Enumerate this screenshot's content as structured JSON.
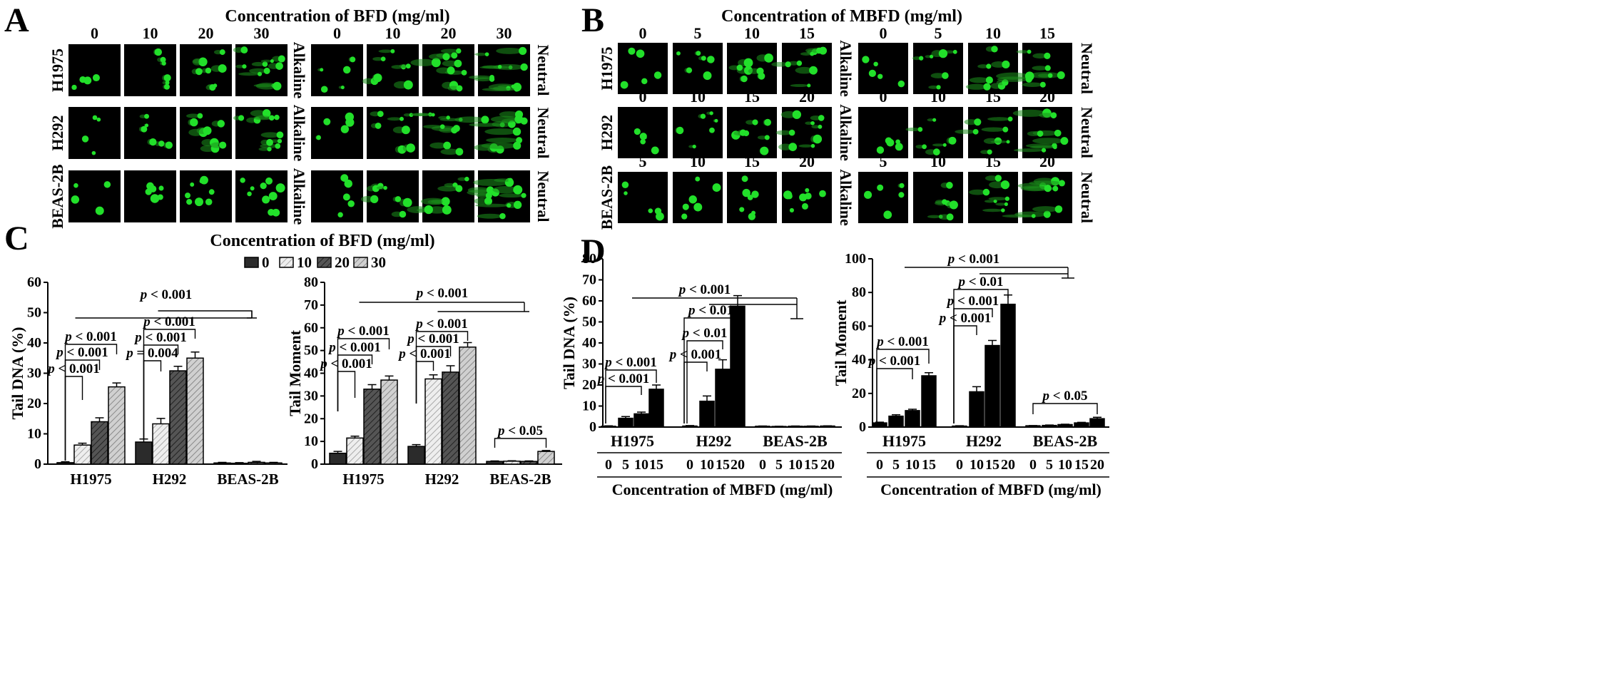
{
  "panels": {
    "A": {
      "label": "A",
      "title": "Concentration of BFD (mg/ml)",
      "columns": [
        "0",
        "10",
        "20",
        "30"
      ],
      "rows": [
        "H1975",
        "H292",
        "BEAS-2B"
      ],
      "left_condition": "Alkaline",
      "right_condition": "Neutral"
    },
    "B": {
      "label": "B",
      "title": "Concentration of MBFD (mg/ml)",
      "rows": [
        {
          "name": "H1975",
          "columns": [
            "0",
            "5",
            "10",
            "15"
          ]
        },
        {
          "name": "H292",
          "columns": [
            "0",
            "10",
            "15",
            "20"
          ]
        },
        {
          "name": "BEAS-2B",
          "columns": [
            "5",
            "10",
            "15",
            "20"
          ]
        }
      ],
      "left_condition": "Alkaline",
      "right_condition": "Neutral"
    },
    "C": {
      "label": "C",
      "title": "Concentration of BFD (mg/ml)"
    },
    "D": {
      "label": "D"
    }
  },
  "colors": {
    "background": "#000000",
    "comet": "#22e02a",
    "bar_dark": "#333333",
    "bar_light": "#d8d8d8"
  },
  "chart_data": [
    {
      "type": "bar",
      "panel": "C",
      "ylabel": "Tail DNA (%)",
      "ylim": [
        0,
        60
      ],
      "yticks": [
        0,
        10,
        20,
        30,
        40,
        50,
        60
      ],
      "categories": [
        "H1975",
        "H292",
        "BEAS-2B"
      ],
      "series": [
        {
          "name": "0",
          "values": [
            0.5,
            7.3,
            0.4
          ],
          "errors": [
            0.3,
            1.0,
            0.2
          ]
        },
        {
          "name": "10",
          "values": [
            6.3,
            13.3,
            0.3
          ],
          "errors": [
            0.6,
            1.8,
            0.2
          ]
        },
        {
          "name": "20",
          "values": [
            14.0,
            30.8,
            0.6
          ],
          "errors": [
            1.3,
            1.5,
            0.3
          ]
        },
        {
          "name": "30",
          "values": [
            25.5,
            35.0,
            0.4
          ],
          "errors": [
            1.3,
            2.0,
            0.2
          ]
        }
      ],
      "annotations": [
        "p < 0.001",
        "p < 0.001",
        "p < 0.001",
        "p = 0.004",
        "p < 0.001",
        "p < 0.001",
        "p < 0.001"
      ]
    },
    {
      "type": "bar",
      "panel": "C",
      "ylabel": "Tail Moment",
      "ylim": [
        0,
        80
      ],
      "yticks": [
        0,
        10,
        20,
        30,
        40,
        50,
        60,
        70,
        80
      ],
      "categories": [
        "H1975",
        "H292",
        "BEAS-2B"
      ],
      "series": [
        {
          "name": "0",
          "values": [
            4.8,
            7.8,
            1.2
          ],
          "errors": [
            0.8,
            0.8,
            0.2
          ]
        },
        {
          "name": "10",
          "values": [
            11.5,
            37.5,
            1.3
          ],
          "errors": [
            0.8,
            1.8,
            0.2
          ]
        },
        {
          "name": "20",
          "values": [
            33.0,
            40.5,
            1.2
          ],
          "errors": [
            2.0,
            2.8,
            0.2
          ]
        },
        {
          "name": "30",
          "values": [
            37.0,
            51.5,
            5.6
          ],
          "errors": [
            1.8,
            2.0,
            0.4
          ]
        }
      ],
      "annotations": [
        "p < 0.001",
        "p < 0.001",
        "p < 0.001",
        "p < 0.001",
        "p < 0.001",
        "p < 0.001",
        "p < 0.001",
        "p < 0.05"
      ]
    },
    {
      "type": "bar",
      "panel": "D",
      "ylabel": "Tail DNA (%)",
      "xlabel": "Concentration of MBFD (mg/ml)",
      "ylim": [
        0,
        80
      ],
      "yticks": [
        0,
        10,
        20,
        30,
        40,
        50,
        60,
        70,
        80
      ],
      "groups": [
        {
          "name": "H1975",
          "x": [
            "0",
            "5",
            "10",
            "15"
          ],
          "values": [
            0.4,
            4.2,
            6.3,
            18.0
          ],
          "errors": [
            0.2,
            0.8,
            0.8,
            2.0
          ]
        },
        {
          "name": "H292",
          "x": [
            "0",
            "10",
            "15",
            "20"
          ],
          "values": [
            0.5,
            12.3,
            27.5,
            57.5
          ],
          "errors": [
            0.2,
            2.5,
            4.5,
            5.0
          ]
        },
        {
          "name": "BEAS-2B",
          "x": [
            "0",
            "5",
            "10",
            "15",
            "20"
          ],
          "values": [
            0.4,
            0.3,
            0.4,
            0.4,
            0.5
          ],
          "errors": [
            0.1,
            0.1,
            0.1,
            0.1,
            0.1
          ]
        }
      ],
      "annotations": [
        "p < 0.001",
        "p < 0.001",
        "p < 0.001",
        "p < 0.01",
        "p < 0.01",
        "p < 0.001"
      ]
    },
    {
      "type": "bar",
      "panel": "D",
      "ylabel": "Tail Moment",
      "xlabel": "Concentration of MBFD (mg/ml)",
      "ylim": [
        0,
        100
      ],
      "yticks": [
        0,
        20,
        40,
        60,
        80,
        100
      ],
      "groups": [
        {
          "name": "H1975",
          "x": [
            "0",
            "5",
            "10",
            "15"
          ],
          "values": [
            2.5,
            6.5,
            9.8,
            30.5
          ],
          "errors": [
            0.4,
            0.8,
            0.8,
            1.8
          ]
        },
        {
          "name": "H292",
          "x": [
            "0",
            "10",
            "15",
            "20"
          ],
          "values": [
            0.6,
            21.0,
            48.5,
            73.0
          ],
          "errors": [
            0.2,
            3.0,
            3.0,
            5.5
          ]
        },
        {
          "name": "BEAS-2B",
          "x": [
            "0",
            "5",
            "10",
            "15",
            "20"
          ],
          "values": [
            0.8,
            1.0,
            1.5,
            2.5,
            5.0
          ],
          "errors": [
            0.1,
            0.2,
            0.2,
            0.3,
            0.8
          ]
        }
      ],
      "annotations": [
        "p < 0.001",
        "p < 0.001",
        "p < 0.001",
        "p < 0.001",
        "p < 0.01",
        "p < 0.05"
      ]
    }
  ]
}
